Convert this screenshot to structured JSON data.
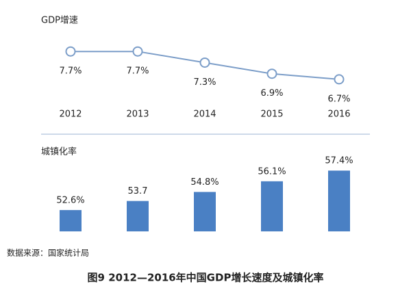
{
  "chart_data": [
    {
      "type": "line",
      "title": "GDP增速",
      "categories": [
        "2012",
        "2013",
        "2014",
        "2015",
        "2016"
      ],
      "values": [
        7.7,
        7.7,
        7.3,
        6.9,
        6.7
      ],
      "value_labels": [
        "7.7%",
        "7.7%",
        "7.3%",
        "6.9%",
        "6.7%"
      ],
      "color": "#7b9dc8",
      "ylim": [
        6.5,
        8
      ]
    },
    {
      "type": "bar",
      "title": "城镇化率",
      "categories": [
        "2012",
        "2013",
        "2014",
        "2015",
        "2016"
      ],
      "values": [
        52.6,
        53.7,
        54.8,
        56.1,
        57.4
      ],
      "value_labels": [
        "52.6%",
        "53.7",
        "54.8%",
        "56.1%",
        "57.4%"
      ],
      "color": "#4a80c4",
      "ylim": [
        50,
        58
      ]
    }
  ],
  "source": "数据来源：国家统计局",
  "caption": "图9  2012—2016年中国GDP增长速度及城镇化率"
}
